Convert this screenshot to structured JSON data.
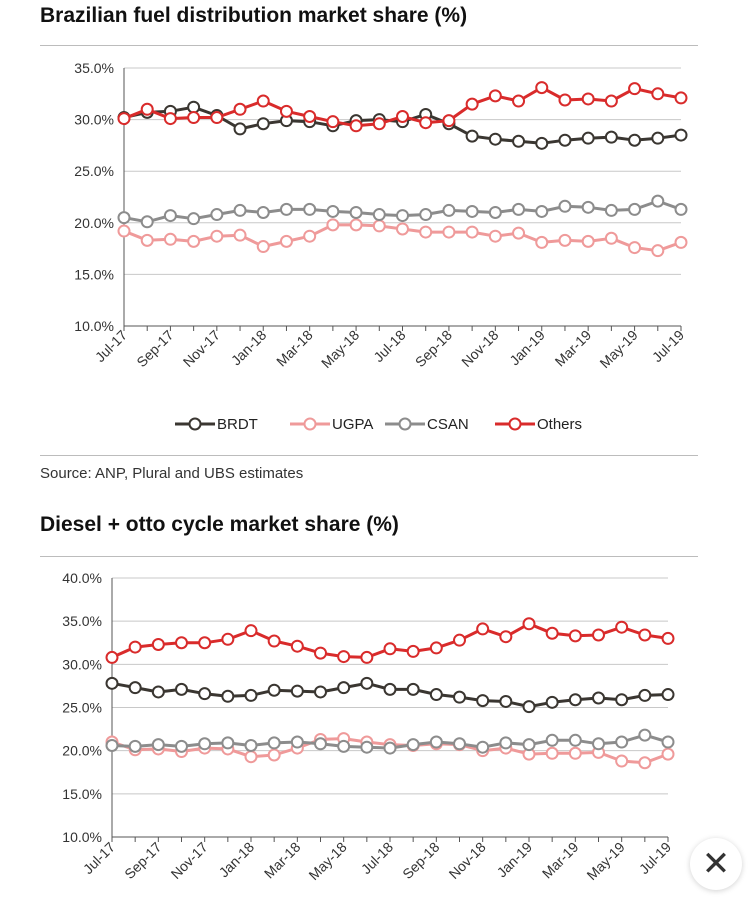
{
  "chart_data": [
    {
      "type": "line",
      "title": "Brazilian fuel distribution market share (%)",
      "x": [
        "Jul-17",
        "Aug-17",
        "Sep-17",
        "Oct-17",
        "Nov-17",
        "Dec-17",
        "Jan-18",
        "Feb-18",
        "Mar-18",
        "Apr-18",
        "May-18",
        "Jun-18",
        "Jul-18",
        "Aug-18",
        "Sep-18",
        "Oct-18",
        "Nov-18",
        "Dec-18",
        "Jan-19",
        "Feb-19",
        "Mar-19",
        "Apr-19",
        "May-19",
        "Jun-19",
        "Jul-19"
      ],
      "x_tick_labels": [
        "Jul-17",
        "Sep-17",
        "Nov-17",
        "Jan-18",
        "Mar-18",
        "May-18",
        "Jul-18",
        "Sep-18",
        "Nov-18",
        "Jan-19",
        "Mar-19",
        "May-19",
        "Jul-19"
      ],
      "y_tick_labels": [
        "35.0%",
        "30.0%",
        "25.0%",
        "20.0%",
        "15.0%",
        "10.0%"
      ],
      "ylim": [
        10,
        35
      ],
      "grid": true,
      "legend_position": "bottom",
      "series": [
        {
          "name": "BRDT",
          "color": "#3a3631",
          "values": [
            30.2,
            30.7,
            30.8,
            31.2,
            30.4,
            29.1,
            29.6,
            29.9,
            29.8,
            29.4,
            29.9,
            30.0,
            29.8,
            30.5,
            29.6,
            28.4,
            28.1,
            27.9,
            27.7,
            28.0,
            28.2,
            28.3,
            28.0,
            28.2,
            28.5
          ]
        },
        {
          "name": "UGPA",
          "color": "#ef9a9a",
          "values": [
            19.2,
            18.3,
            18.4,
            18.2,
            18.7,
            18.8,
            17.7,
            18.2,
            18.7,
            19.8,
            19.8,
            19.7,
            19.4,
            19.1,
            19.1,
            19.1,
            18.7,
            19.0,
            18.1,
            18.3,
            18.2,
            18.5,
            17.6,
            17.3,
            18.1
          ]
        },
        {
          "name": "CSAN",
          "color": "#8c8c8c",
          "values": [
            20.5,
            20.1,
            20.7,
            20.4,
            20.8,
            21.2,
            21.0,
            21.3,
            21.3,
            21.1,
            21.0,
            20.8,
            20.7,
            20.8,
            21.2,
            21.1,
            21.0,
            21.3,
            21.1,
            21.6,
            21.5,
            21.2,
            21.3,
            22.1,
            21.3
          ]
        },
        {
          "name": "Others",
          "color": "#d92b2b",
          "values": [
            30.1,
            31.0,
            30.1,
            30.2,
            30.2,
            31.0,
            31.8,
            30.8,
            30.3,
            29.8,
            29.4,
            29.6,
            30.3,
            29.7,
            29.9,
            31.5,
            32.3,
            31.8,
            33.1,
            31.9,
            32.0,
            31.8,
            33.0,
            32.5,
            32.1
          ]
        }
      ]
    },
    {
      "type": "line",
      "title": "Diesel + otto cycle market share (%)",
      "x": [
        "Jul-17",
        "Aug-17",
        "Sep-17",
        "Oct-17",
        "Nov-17",
        "Dec-17",
        "Jan-18",
        "Feb-18",
        "Mar-18",
        "Apr-18",
        "May-18",
        "Jun-18",
        "Jul-18",
        "Aug-18",
        "Sep-18",
        "Oct-18",
        "Nov-18",
        "Dec-18",
        "Jan-19",
        "Feb-19",
        "Mar-19",
        "Apr-19",
        "May-19",
        "Jun-19",
        "Jul-19"
      ],
      "x_tick_labels": [
        "Jul-17",
        "Sep-17",
        "Nov-17",
        "Jan-18",
        "Mar-18",
        "May-18",
        "Jul-18",
        "Sep-18",
        "Nov-18",
        "Jan-19",
        "Mar-19",
        "May-19",
        "Jul-19"
      ],
      "y_tick_labels": [
        "40.0%",
        "35.0%",
        "30.0%",
        "25.0%",
        "20.0%",
        "15.0%",
        "10.0%"
      ],
      "ylim": [
        10,
        40
      ],
      "grid": true,
      "series": [
        {
          "name": "BRDT",
          "color": "#3a3631",
          "values": [
            27.8,
            27.3,
            26.8,
            27.1,
            26.6,
            26.3,
            26.4,
            27.0,
            26.9,
            26.8,
            27.3,
            27.8,
            27.1,
            27.1,
            26.5,
            26.2,
            25.8,
            25.7,
            25.1,
            25.6,
            25.9,
            26.1,
            25.9,
            26.4,
            26.5
          ]
        },
        {
          "name": "UGPA",
          "color": "#ef9a9a",
          "values": [
            21.0,
            20.1,
            20.2,
            19.9,
            20.3,
            20.2,
            19.3,
            19.5,
            20.3,
            21.3,
            21.4,
            21.0,
            20.7,
            20.6,
            20.8,
            20.7,
            20.0,
            20.3,
            19.6,
            19.7,
            19.7,
            19.8,
            18.8,
            18.6,
            19.6
          ]
        },
        {
          "name": "CSAN",
          "color": "#8c8c8c",
          "values": [
            20.6,
            20.5,
            20.7,
            20.5,
            20.8,
            20.9,
            20.6,
            20.9,
            21.0,
            20.8,
            20.5,
            20.4,
            20.3,
            20.7,
            21.0,
            20.8,
            20.4,
            20.9,
            20.7,
            21.2,
            21.2,
            20.8,
            21.0,
            21.8,
            21.0
          ]
        },
        {
          "name": "Others",
          "color": "#d92b2b",
          "values": [
            30.8,
            32.0,
            32.3,
            32.5,
            32.5,
            32.9,
            33.9,
            32.7,
            32.1,
            31.3,
            30.9,
            30.8,
            31.8,
            31.5,
            31.9,
            32.8,
            34.1,
            33.2,
            34.7,
            33.6,
            33.3,
            33.4,
            34.3,
            33.4,
            33.0
          ]
        }
      ]
    }
  ],
  "header": {
    "title1": "Brazilian fuel distribution market share (%)",
    "title2": "Diesel + otto cycle market share (%)"
  },
  "source_text": "Source:  ANP, Plural and UBS estimates",
  "close_button": {
    "icon": "close-icon",
    "glyph": "✕"
  }
}
